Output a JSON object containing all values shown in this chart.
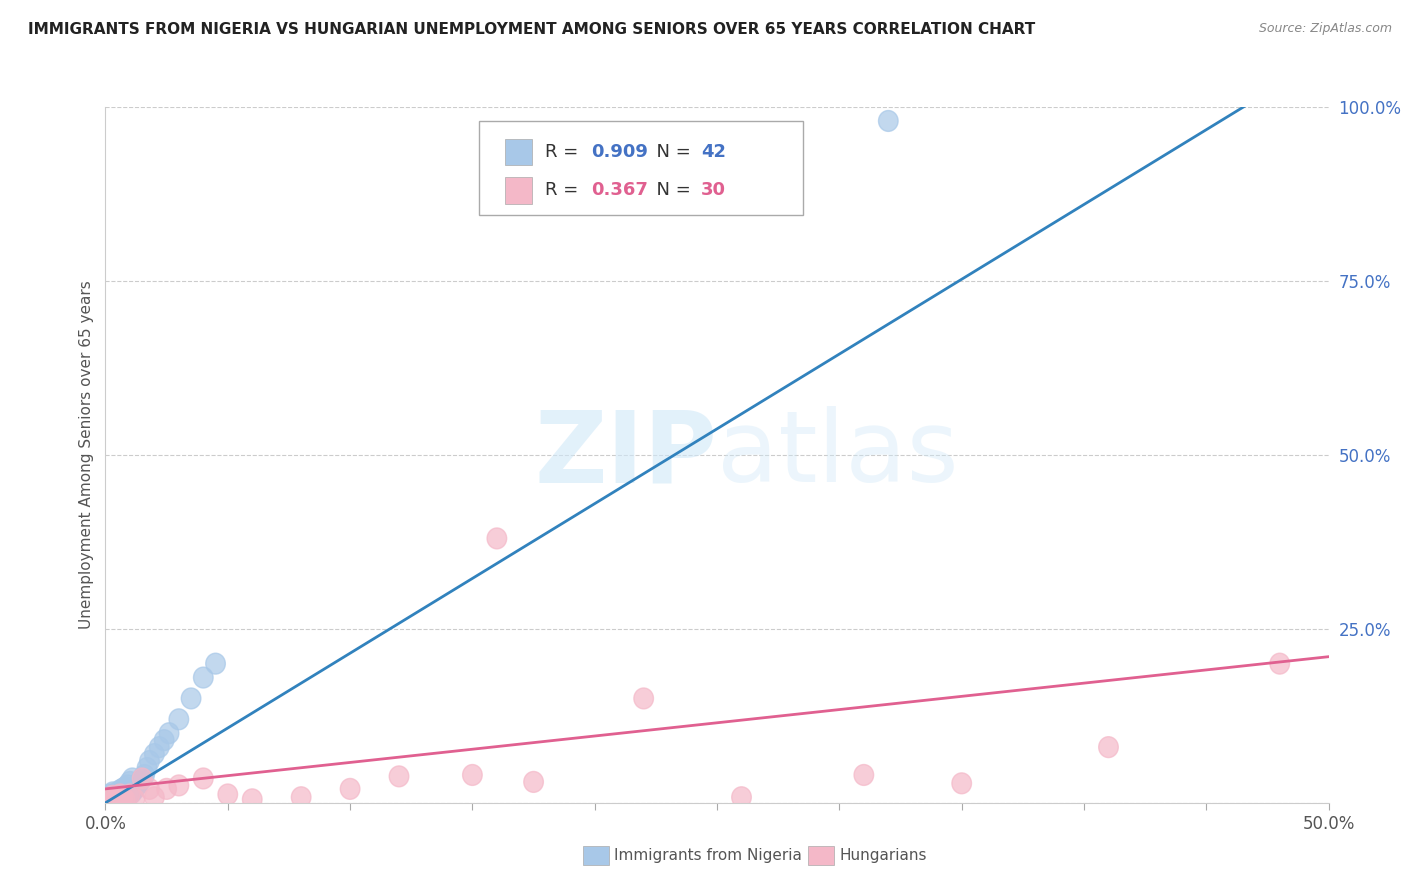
{
  "title": "IMMIGRANTS FROM NIGERIA VS HUNGARIAN UNEMPLOYMENT AMONG SENIORS OVER 65 YEARS CORRELATION CHART",
  "source": "Source: ZipAtlas.com",
  "ylabel": "Unemployment Among Seniors over 65 years",
  "series1_name": "Immigrants from Nigeria",
  "series1_color": "#a8c8e8",
  "series1_line_color": "#3182bd",
  "series1_R": 0.909,
  "series1_N": 42,
  "series2_name": "Hungarians",
  "series2_color": "#f4b8c8",
  "series2_line_color": "#e06090",
  "series2_R": 0.367,
  "series2_N": 30,
  "watermark_zip": "ZIP",
  "watermark_atlas": "atlas",
  "background_color": "#ffffff",
  "xlim": [
    0.0,
    0.5
  ],
  "ylim": [
    0.0,
    1.0
  ],
  "xticks": [
    0.0,
    0.05,
    0.1,
    0.15,
    0.2,
    0.25,
    0.3,
    0.35,
    0.4,
    0.45,
    0.5
  ],
  "yticks": [
    0.0,
    0.25,
    0.5,
    0.75,
    1.0
  ],
  "ytick_labels": [
    "",
    "25.0%",
    "50.0%",
    "75.0%",
    "100.0%"
  ],
  "series1_x": [
    0.001,
    0.001,
    0.002,
    0.002,
    0.002,
    0.003,
    0.003,
    0.003,
    0.004,
    0.004,
    0.004,
    0.005,
    0.005,
    0.005,
    0.006,
    0.006,
    0.007,
    0.007,
    0.008,
    0.008,
    0.009,
    0.009,
    0.01,
    0.01,
    0.011,
    0.011,
    0.012,
    0.013,
    0.014,
    0.015,
    0.016,
    0.017,
    0.018,
    0.02,
    0.022,
    0.024,
    0.026,
    0.03,
    0.035,
    0.04,
    0.045,
    0.32
  ],
  "series1_y": [
    0.005,
    0.008,
    0.005,
    0.008,
    0.012,
    0.005,
    0.008,
    0.015,
    0.005,
    0.008,
    0.012,
    0.005,
    0.01,
    0.015,
    0.008,
    0.018,
    0.008,
    0.02,
    0.01,
    0.022,
    0.01,
    0.025,
    0.012,
    0.03,
    0.015,
    0.035,
    0.02,
    0.025,
    0.03,
    0.035,
    0.04,
    0.05,
    0.06,
    0.07,
    0.08,
    0.09,
    0.1,
    0.12,
    0.15,
    0.18,
    0.2,
    0.98
  ],
  "series2_x": [
    0.001,
    0.002,
    0.003,
    0.004,
    0.005,
    0.006,
    0.007,
    0.008,
    0.01,
    0.012,
    0.015,
    0.018,
    0.02,
    0.025,
    0.03,
    0.04,
    0.05,
    0.06,
    0.08,
    0.1,
    0.12,
    0.15,
    0.16,
    0.175,
    0.22,
    0.26,
    0.31,
    0.35,
    0.41,
    0.48
  ],
  "series2_y": [
    0.005,
    0.005,
    0.01,
    0.005,
    0.008,
    0.012,
    0.008,
    0.005,
    0.012,
    0.005,
    0.035,
    0.02,
    0.008,
    0.02,
    0.025,
    0.035,
    0.012,
    0.005,
    0.008,
    0.02,
    0.038,
    0.04,
    0.38,
    0.03,
    0.15,
    0.008,
    0.04,
    0.028,
    0.08,
    0.2
  ]
}
